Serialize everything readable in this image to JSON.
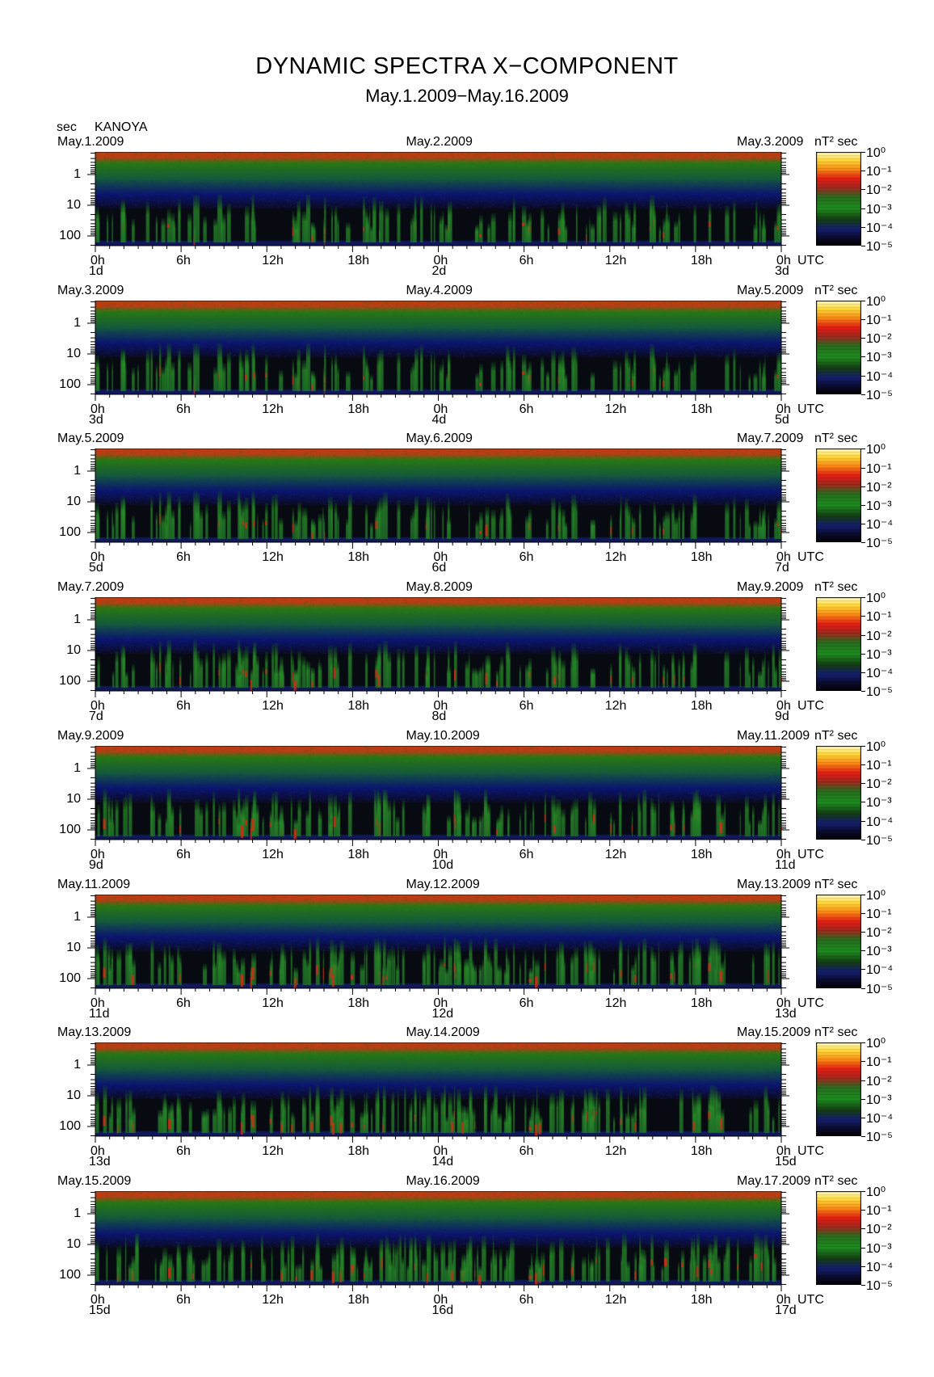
{
  "title": "DYNAMIC SPECTRA X−COMPONENT",
  "subtitle": "May.1.2009−May.16.2009",
  "yaxis_unit": "sec",
  "station": "KANOYA",
  "colorbar_unit": "nT² sec",
  "colorbar_ticks": [
    "10⁰",
    "10⁻¹",
    "10⁻²",
    "10⁻³",
    "10⁻⁴",
    "10⁻⁵"
  ],
  "colors": {
    "low": "#000000",
    "blue": "#1a2a8a",
    "green": "#1f8a1f",
    "orange": "#c05010",
    "red": "#e01010",
    "yellow": "#ffee00"
  },
  "time_axis": {
    "hour_labels": [
      "0h",
      "6h",
      "12h",
      "18h",
      "0h",
      "6h",
      "12h",
      "18h",
      "0h"
    ],
    "utc_label": "UTC"
  },
  "chart_data": {
    "type": "heatmap",
    "panels": [
      {
        "start_date": "May.1.2009",
        "mid_date": "May.2.2009",
        "end_date": "May.3.2009",
        "day_labels": [
          "1d",
          "2d",
          "3d"
        ]
      },
      {
        "start_date": "May.3.2009",
        "mid_date": "May.4.2009",
        "end_date": "May.5.2009",
        "day_labels": [
          "3d",
          "4d",
          "5d"
        ]
      },
      {
        "start_date": "May.5.2009",
        "mid_date": "May.6.2009",
        "end_date": "May.7.2009",
        "day_labels": [
          "5d",
          "6d",
          "7d"
        ]
      },
      {
        "start_date": "May.7.2009",
        "mid_date": "May.8.2009",
        "end_date": "May.9.2009",
        "day_labels": [
          "7d",
          "8d",
          "9d"
        ]
      },
      {
        "start_date": "May.9.2009",
        "mid_date": "May.10.2009",
        "end_date": "May.11.2009",
        "day_labels": [
          "9d",
          "10d",
          "11d"
        ]
      },
      {
        "start_date": "May.11.2009",
        "mid_date": "May.12.2009",
        "end_date": "May.13.2009",
        "day_labels": [
          "11d",
          "12d",
          "13d"
        ]
      },
      {
        "start_date": "May.13.2009",
        "mid_date": "May.14.2009",
        "end_date": "May.15.2009",
        "day_labels": [
          "13d",
          "14d",
          "15d"
        ]
      },
      {
        "start_date": "May.15.2009",
        "mid_date": "May.16.2009",
        "end_date": "May.17.2009",
        "day_labels": [
          "15d",
          "16d",
          "17d"
        ]
      }
    ],
    "y_ticks": [
      "1",
      "10",
      "100"
    ],
    "y_scale": "log",
    "color_scale": "log",
    "color_range": [
      1e-05,
      1
    ]
  }
}
